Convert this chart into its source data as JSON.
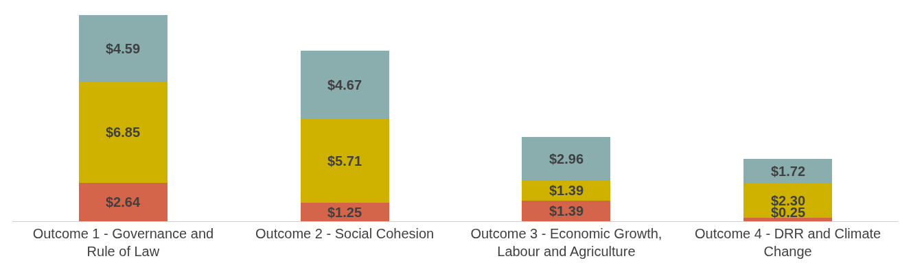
{
  "chart_data": {
    "type": "bar",
    "stacked": true,
    "categories": [
      "Outcome 1 - Governance and Rule of Law",
      "Outcome 2 - Social Cohesion",
      "Outcome 3 - Economic Growth, Labour and Agriculture",
      "Outcome 4 - DRR and Climate Change"
    ],
    "series": [
      {
        "color": "#d4644a",
        "values": [
          2.64,
          1.25,
          1.39,
          0.25
        ],
        "value_labels": [
          "$2.64",
          "$1.25",
          "$1.39",
          "$0.25"
        ]
      },
      {
        "color": "#cfb200",
        "values": [
          6.85,
          5.71,
          1.39,
          2.3
        ],
        "value_labels": [
          "$6.85",
          "$5.71",
          "$1.39",
          "$2.30"
        ]
      },
      {
        "color": "#8aaeae",
        "values": [
          4.59,
          4.67,
          2.96,
          1.72
        ],
        "value_labels": [
          "$4.59",
          "$4.67",
          "$2.96",
          "$1.72"
        ]
      }
    ]
  }
}
